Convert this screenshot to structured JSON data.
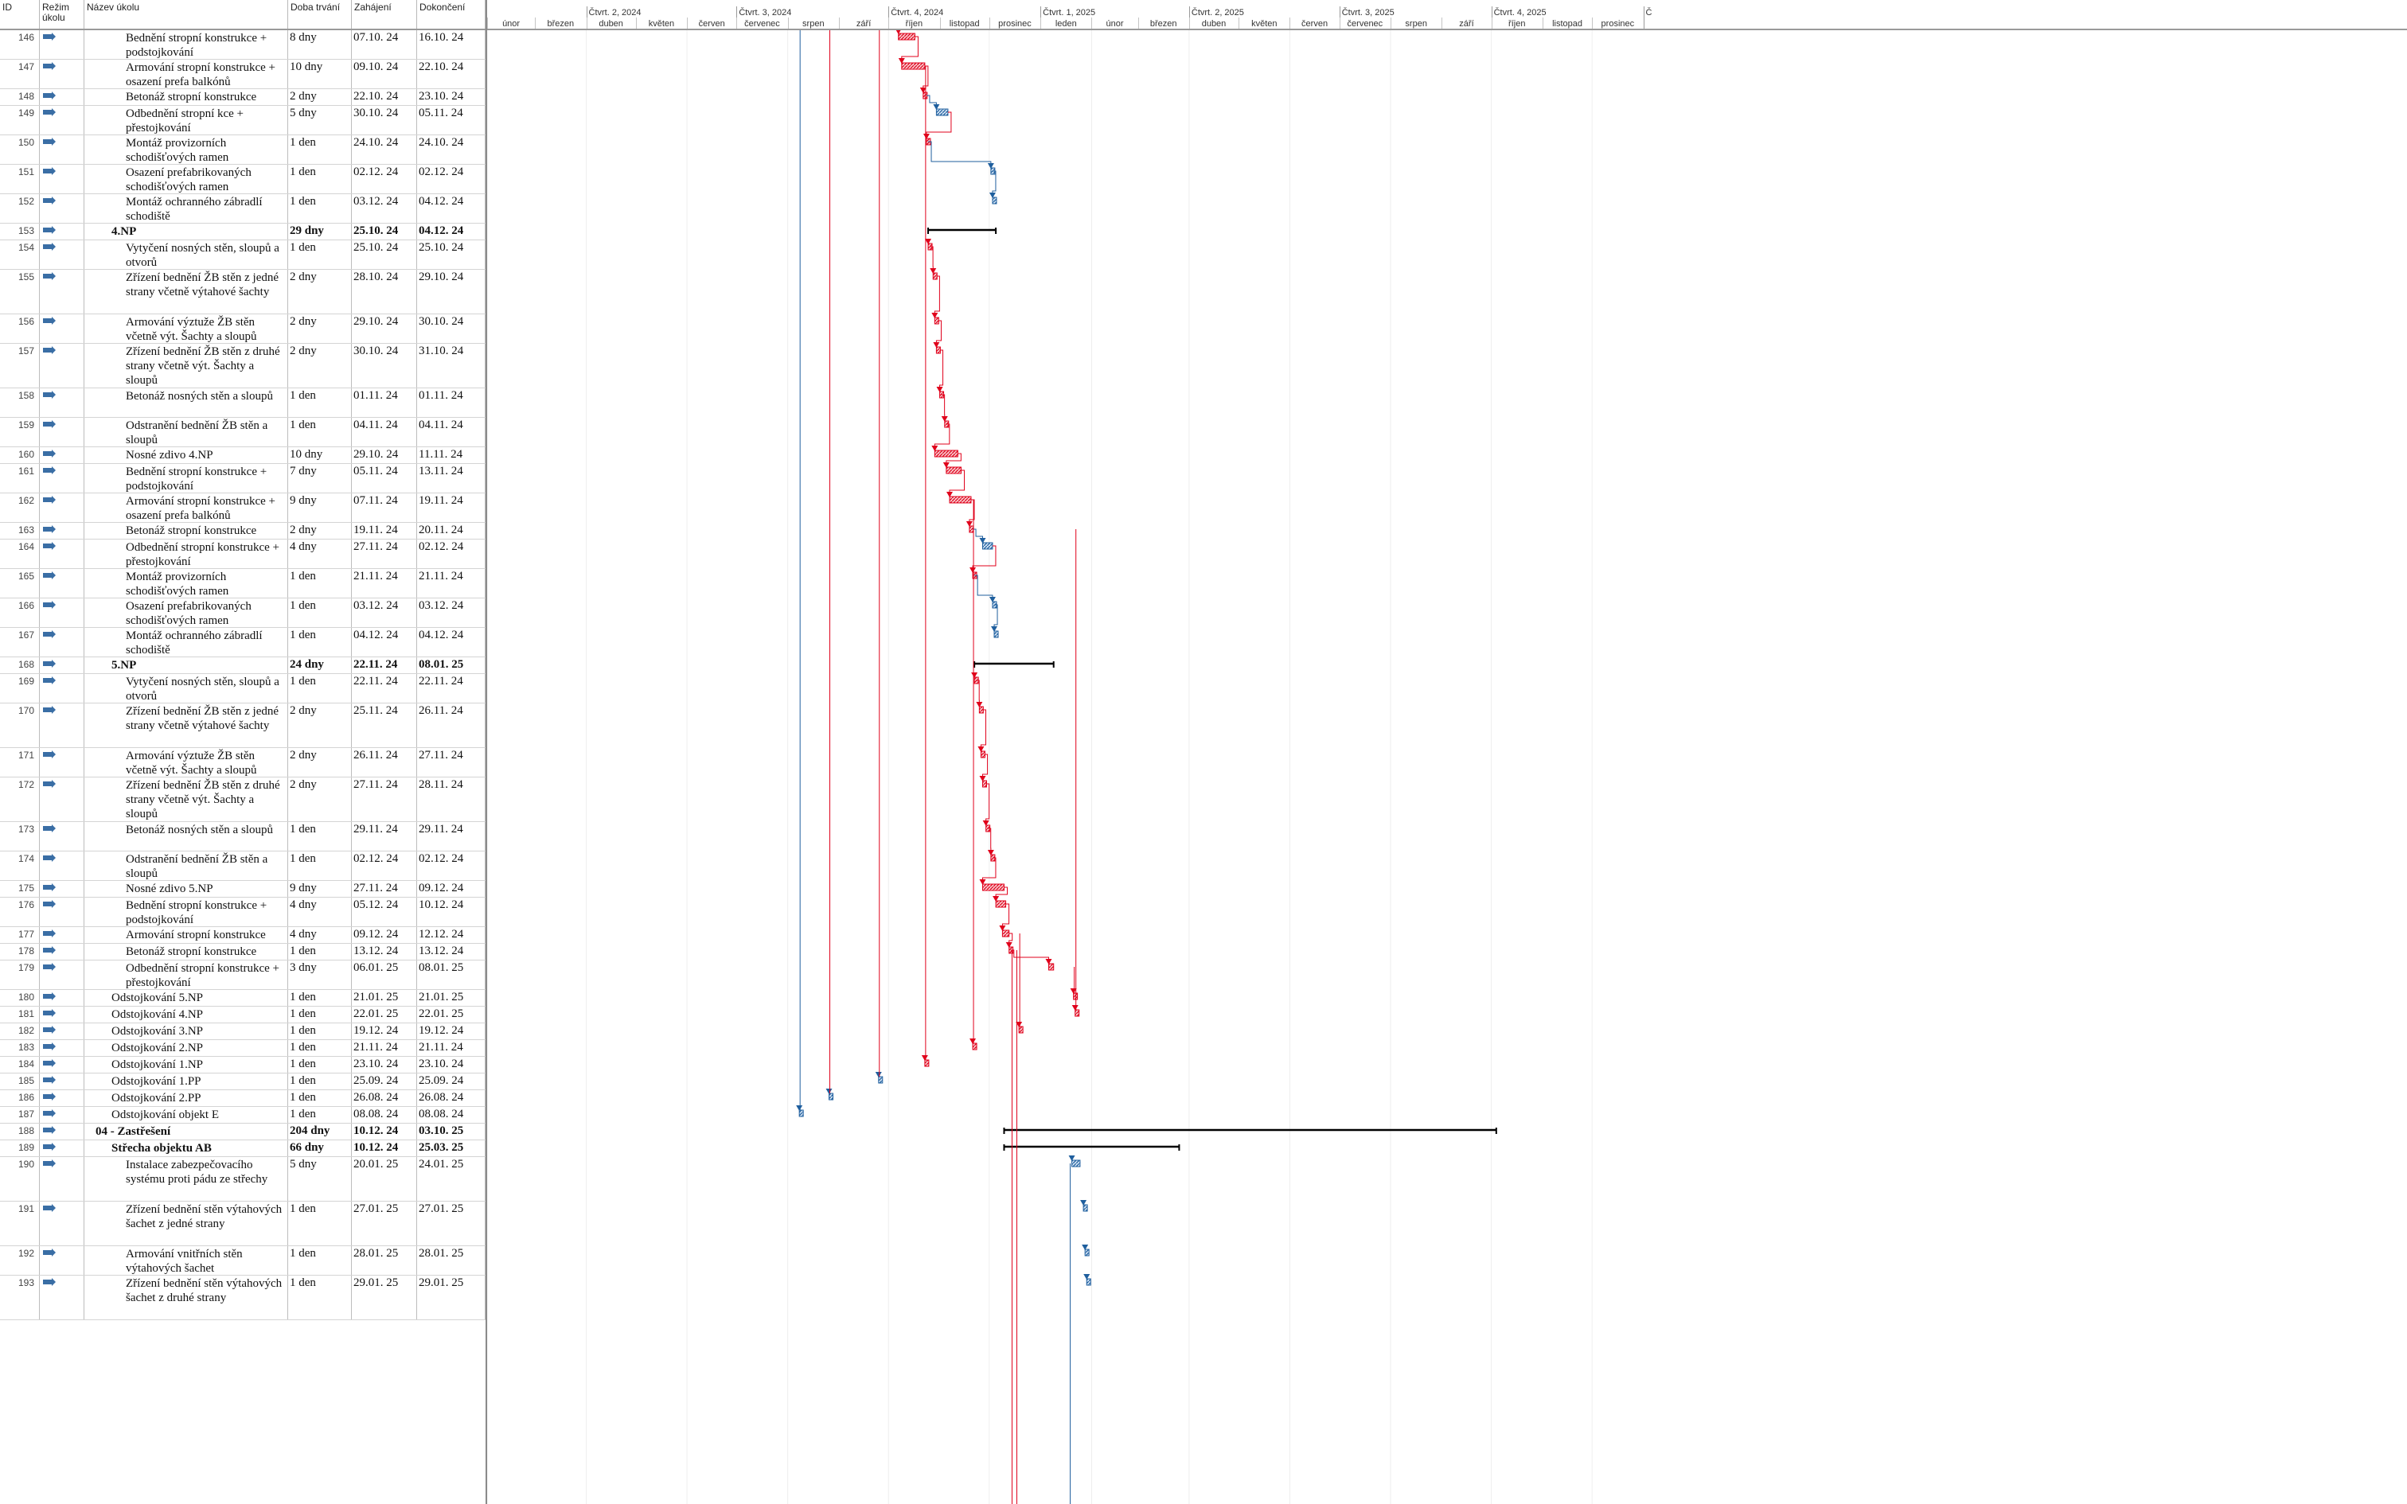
{
  "header": {
    "col_id": "ID",
    "col_mode": "Režim úkolu",
    "col_name": "Název úkolu",
    "col_duration": "Doba trvání",
    "col_start": "Zahájení",
    "col_finish": "Dokončení"
  },
  "timeline": {
    "quarters": [
      "Čtvrt. 2, 2024",
      "Čtvrt. 3, 2024",
      "Čtvrt. 4, 2024",
      "Čtvrt. 1, 2025",
      "Čtvrt. 2, 2025",
      "Čtvrt. 3, 2025",
      "Čtvrt. 4, 2025",
      "Č"
    ],
    "months": [
      "únor",
      "březen",
      "duben",
      "květen",
      "červen",
      "červenec",
      "srpen",
      "září",
      "říjen",
      "listopad",
      "prosinec",
      "leden",
      "únor",
      "březen",
      "duben",
      "květen",
      "červen",
      "červenec",
      "srpen",
      "září",
      "říjen",
      "listopad",
      "prosinec"
    ]
  },
  "colors": {
    "critical": "#e0001b",
    "normal": "#1f5f9e",
    "summary": "#000000",
    "icon": "#3a6ea5"
  },
  "tasks": [
    {
      "id": "146",
      "name": "Bednění stropní konstrukce + podstojkování",
      "duration": "8 dny",
      "start": "07.10. 24",
      "finish": "16.10. 24",
      "level": 2
    },
    {
      "id": "147",
      "name": "Armování stropní konstrukce + osazení prefa balkónů",
      "duration": "10 dny",
      "start": "09.10. 24",
      "finish": "22.10. 24",
      "level": 2
    },
    {
      "id": "148",
      "name": "Betonáž stropní konstrukce",
      "duration": "2 dny",
      "start": "22.10. 24",
      "finish": "23.10. 24",
      "level": 2
    },
    {
      "id": "149",
      "name": "Odbednění stropní kce + přestojkování",
      "duration": "5 dny",
      "start": "30.10. 24",
      "finish": "05.11. 24",
      "level": 2
    },
    {
      "id": "150",
      "name": "Montáž provizorních schodišťových ramen",
      "duration": "1 den",
      "start": "24.10. 24",
      "finish": "24.10. 24",
      "level": 2
    },
    {
      "id": "151",
      "name": "Osazení prefabrikovaných schodišťových ramen",
      "duration": "1 den",
      "start": "02.12. 24",
      "finish": "02.12. 24",
      "level": 2
    },
    {
      "id": "152",
      "name": "Montáž ochranného zábradlí schodiště",
      "duration": "1 den",
      "start": "03.12. 24",
      "finish": "04.12. 24",
      "level": 2
    },
    {
      "id": "153",
      "name": "4.NP",
      "duration": "29 dny",
      "start": "25.10. 24",
      "finish": "04.12. 24",
      "level": 1,
      "bold": true
    },
    {
      "id": "154",
      "name": "Vytyčení nosných stěn, sloupů a otvorů",
      "duration": "1 den",
      "start": "25.10. 24",
      "finish": "25.10. 24",
      "level": 2
    },
    {
      "id": "155",
      "name": "Zřízení bednění ŽB stěn z jedné strany včetně výtahové šachty",
      "duration": "2 dny",
      "start": "28.10. 24",
      "finish": "29.10. 24",
      "level": 2
    },
    {
      "id": "156",
      "name": "Armování výztuže ŽB stěn včetně výt. Šachty a sloupů",
      "duration": "2 dny",
      "start": "29.10. 24",
      "finish": "30.10. 24",
      "level": 2
    },
    {
      "id": "157",
      "name": "Zřízení bednění ŽB stěn z druhé strany včetně výt. Šachty a sloupů",
      "duration": "2 dny",
      "start": "30.10. 24",
      "finish": "31.10. 24",
      "level": 2
    },
    {
      "id": "158",
      "name": "Betonáž nosných stěn a sloupů",
      "duration": "1 den",
      "start": "01.11. 24",
      "finish": "01.11. 24",
      "level": 2
    },
    {
      "id": "159",
      "name": "Odstranění bednění ŽB stěn a sloupů",
      "duration": "1 den",
      "start": "04.11. 24",
      "finish": "04.11. 24",
      "level": 2
    },
    {
      "id": "160",
      "name": "Nosné zdivo 4.NP",
      "duration": "10 dny",
      "start": "29.10. 24",
      "finish": "11.11. 24",
      "level": 2
    },
    {
      "id": "161",
      "name": "Bednění stropní konstrukce + podstojkování",
      "duration": "7 dny",
      "start": "05.11. 24",
      "finish": "13.11. 24",
      "level": 2
    },
    {
      "id": "162",
      "name": "Armování stropní konstrukce + osazení prefa balkónů",
      "duration": "9 dny",
      "start": "07.11. 24",
      "finish": "19.11. 24",
      "level": 2
    },
    {
      "id": "163",
      "name": "Betonáž stropní konstrukce",
      "duration": "2 dny",
      "start": "19.11. 24",
      "finish": "20.11. 24",
      "level": 2
    },
    {
      "id": "164",
      "name": "Odbednění stropní konstrukce + přestojkování",
      "duration": "4 dny",
      "start": "27.11. 24",
      "finish": "02.12. 24",
      "level": 2
    },
    {
      "id": "165",
      "name": "Montáž provizorních schodišťových ramen",
      "duration": "1 den",
      "start": "21.11. 24",
      "finish": "21.11. 24",
      "level": 2
    },
    {
      "id": "166",
      "name": "Osazení prefabrikovaných schodišťových ramen",
      "duration": "1 den",
      "start": "03.12. 24",
      "finish": "03.12. 24",
      "level": 2
    },
    {
      "id": "167",
      "name": "Montáž ochranného zábradlí schodiště",
      "duration": "1 den",
      "start": "04.12. 24",
      "finish": "04.12. 24",
      "level": 2
    },
    {
      "id": "168",
      "name": "5.NP",
      "duration": "24 dny",
      "start": "22.11. 24",
      "finish": "08.01. 25",
      "level": 1,
      "bold": true
    },
    {
      "id": "169",
      "name": "Vytyčení nosných stěn, sloupů a otvorů",
      "duration": "1 den",
      "start": "22.11. 24",
      "finish": "22.11. 24",
      "level": 2
    },
    {
      "id": "170",
      "name": "Zřízení bednění ŽB stěn z jedné strany včetně výtahové šachty",
      "duration": "2 dny",
      "start": "25.11. 24",
      "finish": "26.11. 24",
      "level": 2
    },
    {
      "id": "171",
      "name": "Armování výztuže ŽB stěn včetně výt. Šachty a sloupů",
      "duration": "2 dny",
      "start": "26.11. 24",
      "finish": "27.11. 24",
      "level": 2
    },
    {
      "id": "172",
      "name": "Zřízení bednění ŽB stěn z druhé strany včetně výt. Šachty a sloupů",
      "duration": "2 dny",
      "start": "27.11. 24",
      "finish": "28.11. 24",
      "level": 2
    },
    {
      "id": "173",
      "name": "Betonáž nosných stěn a sloupů",
      "duration": "1 den",
      "start": "29.11. 24",
      "finish": "29.11. 24",
      "level": 2
    },
    {
      "id": "174",
      "name": "Odstranění bednění ŽB stěn a sloupů",
      "duration": "1 den",
      "start": "02.12. 24",
      "finish": "02.12. 24",
      "level": 2
    },
    {
      "id": "175",
      "name": "Nosné zdivo 5.NP",
      "duration": "9 dny",
      "start": "27.11. 24",
      "finish": "09.12. 24",
      "level": 2
    },
    {
      "id": "176",
      "name": "Bednění stropní konstrukce + podstojkování",
      "duration": "4 dny",
      "start": "05.12. 24",
      "finish": "10.12. 24",
      "level": 2
    },
    {
      "id": "177",
      "name": "Armování stropní konstrukce",
      "duration": "4 dny",
      "start": "09.12. 24",
      "finish": "12.12. 24",
      "level": 2
    },
    {
      "id": "178",
      "name": "Betonáž stropní konstrukce",
      "duration": "1 den",
      "start": "13.12. 24",
      "finish": "13.12. 24",
      "level": 2
    },
    {
      "id": "179",
      "name": "Odbednění stropní konstrukce + přestojkování",
      "duration": "3 dny",
      "start": "06.01. 25",
      "finish": "08.01. 25",
      "level": 2
    },
    {
      "id": "180",
      "name": "Odstojkování 5.NP",
      "duration": "1 den",
      "start": "21.01. 25",
      "finish": "21.01. 25",
      "level": 1
    },
    {
      "id": "181",
      "name": "Odstojkování 4.NP",
      "duration": "1 den",
      "start": "22.01. 25",
      "finish": "22.01. 25",
      "level": 1
    },
    {
      "id": "182",
      "name": "Odstojkování 3.NP",
      "duration": "1 den",
      "start": "19.12. 24",
      "finish": "19.12. 24",
      "level": 1
    },
    {
      "id": "183",
      "name": "Odstojkování 2.NP",
      "duration": "1 den",
      "start": "21.11. 24",
      "finish": "21.11. 24",
      "level": 1
    },
    {
      "id": "184",
      "name": "Odstojkování 1.NP",
      "duration": "1 den",
      "start": "23.10. 24",
      "finish": "23.10. 24",
      "level": 1
    },
    {
      "id": "185",
      "name": "Odstojkování 1.PP",
      "duration": "1 den",
      "start": "25.09. 24",
      "finish": "25.09. 24",
      "level": 1
    },
    {
      "id": "186",
      "name": "Odstojkování 2.PP",
      "duration": "1 den",
      "start": "26.08. 24",
      "finish": "26.08. 24",
      "level": 1
    },
    {
      "id": "187",
      "name": "Odstojkování objekt E",
      "duration": "1 den",
      "start": "08.08. 24",
      "finish": "08.08. 24",
      "level": 1
    },
    {
      "id": "188",
      "name": "04 - Zastřešení",
      "duration": "204 dny",
      "start": "10.12. 24",
      "finish": "03.10. 25",
      "level": 0,
      "bold": true
    },
    {
      "id": "189",
      "name": "Střecha objektu AB",
      "duration": "66 dny",
      "start": "10.12. 24",
      "finish": "25.03. 25",
      "level": 1,
      "bold": true
    },
    {
      "id": "190",
      "name": "Instalace zabezpečovacího systému proti pádu ze střechy",
      "duration": "5 dny",
      "start": "20.01. 25",
      "finish": "24.01. 25",
      "level": 2
    },
    {
      "id": "191",
      "name": "Zřízení bednění stěn výtahových šachet z jedné strany",
      "duration": "1 den",
      "start": "27.01. 25",
      "finish": "27.01. 25",
      "level": 2
    },
    {
      "id": "192",
      "name": "Armování vnitřních stěn výtahových šachet",
      "duration": "1 den",
      "start": "28.01. 25",
      "finish": "28.01. 25",
      "level": 2
    },
    {
      "id": "193",
      "name": "Zřízení bednění stěn výtahových šachet z druhé strany",
      "duration": "1 den",
      "start": "29.01. 25",
      "finish": "29.01. 25",
      "level": 2
    }
  ]
}
